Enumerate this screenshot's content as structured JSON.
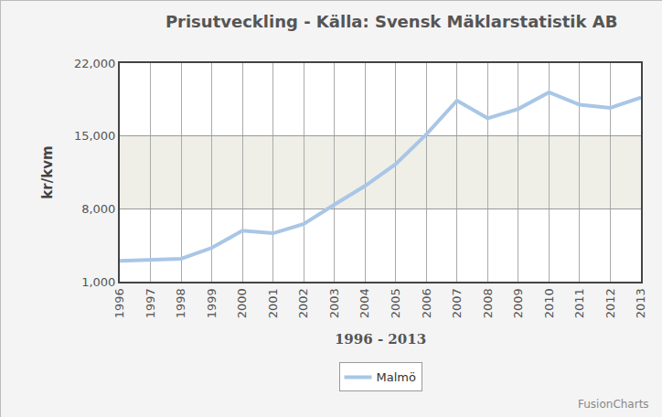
{
  "chart_data": {
    "type": "line",
    "title": "Prisutveckling - Källa: Svensk Mäklarstatistik AB",
    "x_label": "1996 - 2013",
    "y_label": "kr/kvm",
    "categories": [
      "1996",
      "1997",
      "1998",
      "1999",
      "2000",
      "2001",
      "2002",
      "2003",
      "2004",
      "2005",
      "2006",
      "2007",
      "2008",
      "2009",
      "2010",
      "2011",
      "2012",
      "2013"
    ],
    "series": [
      {
        "name": "Malmö",
        "color": "#a9c6e6",
        "line_style": "solid",
        "values": [
          3000,
          3100,
          3200,
          4250,
          5900,
          5650,
          6550,
          8400,
          10200,
          12300,
          15150,
          18400,
          16700,
          17600,
          19200,
          18000,
          17700,
          18700
        ]
      }
    ],
    "ylim": [
      1000,
      22000
    ],
    "yticks": [
      {
        "value": 1000,
        "label": "1,000"
      },
      {
        "value": 8000,
        "label": "8,000"
      },
      {
        "value": 15000,
        "label": "15,000"
      },
      {
        "value": 22000,
        "label": "22,000"
      }
    ],
    "grid": true,
    "legend": "bottom",
    "annotations": [
      "FusionCharts"
    ]
  }
}
